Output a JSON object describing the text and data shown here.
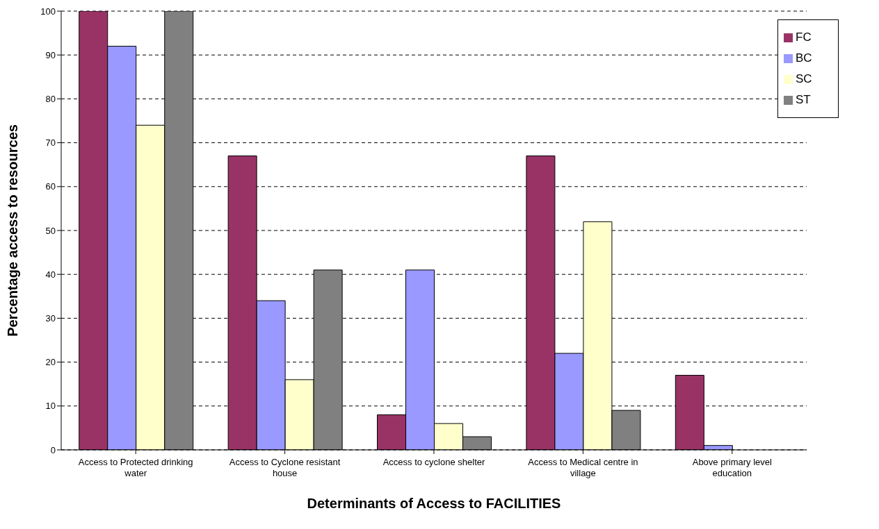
{
  "chart_data": {
    "type": "bar",
    "xlabel": "Determinants of Access to FACILITIES",
    "ylabel": "Percentage access to resources",
    "categories": [
      "Access to Protected drinking water",
      "Access to Cyclone resistant house",
      "Access to cyclone shelter",
      "Access to Medical centre in village",
      "Above primary level education"
    ],
    "series": [
      {
        "name": "FC",
        "color": "#993366",
        "values": [
          100,
          67,
          8,
          67,
          17
        ]
      },
      {
        "name": "BC",
        "color": "#9999ff",
        "values": [
          92,
          34,
          41,
          22,
          1
        ]
      },
      {
        "name": "SC",
        "color": "#ffffcc",
        "values": [
          74,
          16,
          6,
          52,
          0
        ]
      },
      {
        "name": "ST",
        "color": "#808080",
        "values": [
          100,
          41,
          3,
          9,
          0
        ]
      }
    ],
    "ylim": [
      0,
      100
    ],
    "yticks": [
      0,
      10,
      20,
      30,
      40,
      50,
      60,
      70,
      80,
      90,
      100
    ],
    "grid": "y",
    "legend": "top right"
  }
}
